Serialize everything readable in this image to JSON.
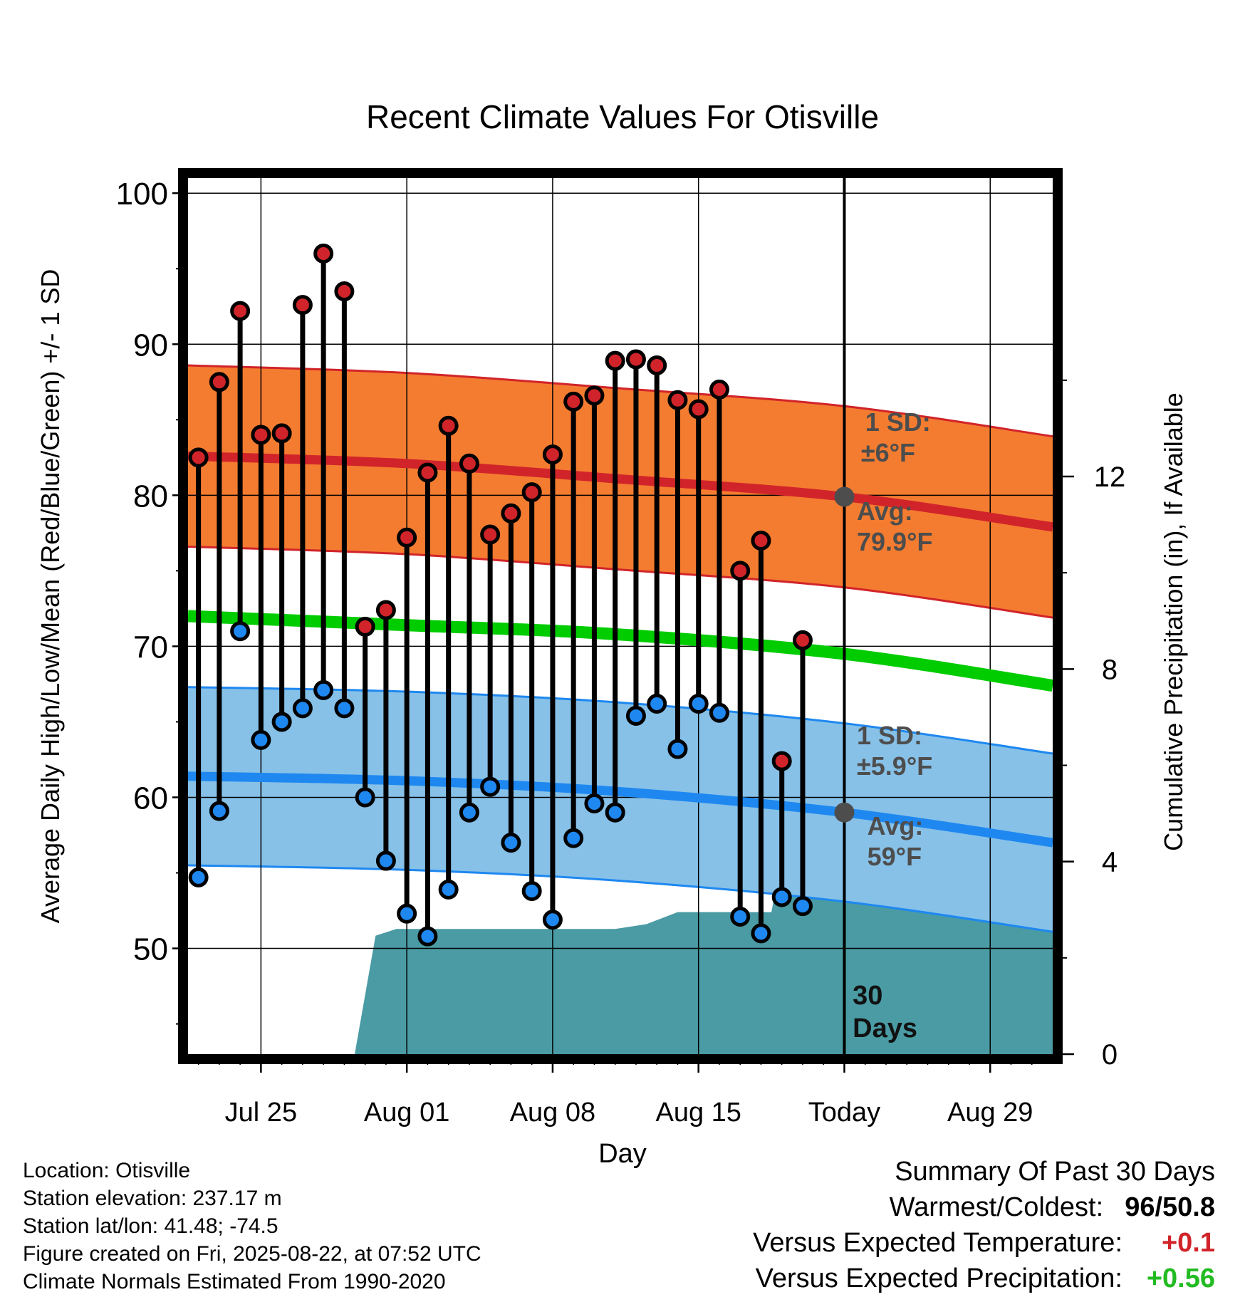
{
  "chart_data": {
    "type": "line",
    "title": "Recent Climate Values For Otisville",
    "xlabel": "Day",
    "ylabel": "Average Daily High/Low/Mean (Red/Blue/Green) +/- 1 SD",
    "y2label": "Cumulative Precipitation (in), If Available",
    "ylim": [
      43,
      101
    ],
    "y2lim": [
      0,
      18.2
    ],
    "xlim": [
      -0.5,
      41
    ],
    "yticks": [
      50,
      60,
      70,
      80,
      90,
      100
    ],
    "y2ticks": [
      0,
      4,
      8,
      12
    ],
    "xticks": [
      {
        "x": 3,
        "label": "Jul 25"
      },
      {
        "x": 10,
        "label": "Aug 01"
      },
      {
        "x": 17,
        "label": "Aug 08"
      },
      {
        "x": 24,
        "label": "Aug 15"
      },
      {
        "x": 31,
        "label": "Today"
      },
      {
        "x": 38,
        "label": "Aug 29"
      }
    ],
    "days": [
      0,
      1,
      2,
      3,
      4,
      5,
      6,
      7,
      8,
      9,
      10,
      11,
      12,
      13,
      14,
      15,
      16,
      17,
      18,
      19,
      20,
      21,
      22,
      23,
      24,
      25,
      26,
      27,
      28,
      29
    ],
    "highs": [
      82.5,
      87.5,
      92.2,
      84.0,
      84.1,
      92.6,
      96.0,
      93.5,
      71.3,
      72.4,
      77.2,
      81.5,
      84.6,
      82.1,
      77.4,
      78.8,
      80.2,
      82.7,
      86.2,
      86.6,
      88.9,
      89.0,
      88.6,
      86.3,
      85.7,
      87.0,
      75.0,
      77.0,
      62.4,
      70.4
    ],
    "lows": [
      54.7,
      59.1,
      71.0,
      63.8,
      65.0,
      65.9,
      67.1,
      65.9,
      60.0,
      55.8,
      52.3,
      50.8,
      53.9,
      59.0,
      60.7,
      57.0,
      53.8,
      51.9,
      57.3,
      59.6,
      59.0,
      65.4,
      66.2,
      63.2,
      66.2,
      65.6,
      52.1,
      51.0,
      53.4,
      52.8
    ],
    "normals_x": [
      -0.5,
      10,
      20,
      31,
      41
    ],
    "normal_high": [
      82.6,
      82.1,
      81.1,
      79.9,
      77.9
    ],
    "sd_high": 6,
    "normal_mean": [
      72.0,
      71.4,
      70.8,
      69.5,
      67.4
    ],
    "normal_low": [
      61.4,
      61.1,
      60.4,
      59.0,
      57.0
    ],
    "sd_low": 5.9,
    "precip_x": [
      7.5,
      8.5,
      9.5,
      20,
      21.5,
      23,
      27.5,
      28,
      29,
      29.5,
      41
    ],
    "precip_y": [
      0,
      2.46,
      2.6,
      2.6,
      2.7,
      2.95,
      2.95,
      4.1,
      5.0,
      5.15,
      5.15
    ],
    "today_x": 31,
    "colors": {
      "high_band": "#f47c30",
      "high_line": "#d1242a",
      "mean_line": "#00cc00",
      "low_band": "#87c1e8",
      "low_line": "#1e88f0",
      "precip_fill": "#4a9ba4",
      "annot": "#4d4d4d"
    },
    "annotations": {
      "high_sd": "1 SD:",
      "high_sd_val": "±6°F",
      "high_avg": "Avg:",
      "high_avg_val": "79.9°F",
      "low_sd": "1 SD:",
      "low_sd_val": "±5.9°F",
      "low_avg": "Avg:",
      "low_avg_val": "59°F",
      "period_num": "30",
      "period_unit": "Days"
    }
  },
  "station": {
    "location": "Location: Otisville",
    "elevation": "Station elevation: 237.17 m",
    "latlon": "Station lat/lon: 41.48; -74.5",
    "created": "Figure created on Fri, 2025-08-22, at 07:52 UTC",
    "normals": "Climate Normals Estimated From 1990-2020"
  },
  "summary": {
    "title": "Summary Of Past 30 Days",
    "warm_cold_label": "Warmest/Coldest:",
    "warmest": "96",
    "coldest": "50.8",
    "temp_label": "Versus Expected Temperature:",
    "temp_value": "+0.1",
    "temp_color": "#d1242a",
    "precip_label": "Versus Expected Precipitation:",
    "precip_value": "+0.56",
    "precip_color": "#22bb22"
  }
}
